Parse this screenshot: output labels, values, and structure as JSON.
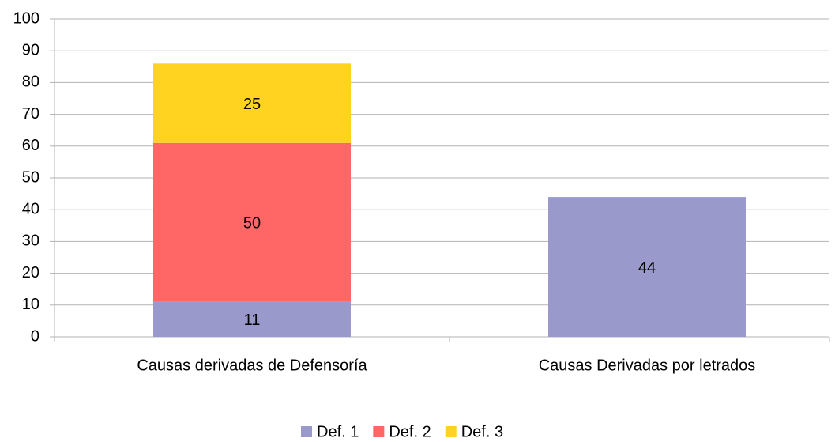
{
  "chart_data": {
    "type": "stacked_bar",
    "categories": [
      "Causas derivadas de Defensoría",
      "Causas Derivadas por letrados"
    ],
    "series": [
      {
        "name": "Def. 1",
        "color": "#9999cc",
        "values": [
          11,
          44
        ]
      },
      {
        "name": "Def. 2",
        "color": "#ff6666",
        "values": [
          50,
          null
        ]
      },
      {
        "name": "Def. 3",
        "color": "#ffd320",
        "values": [
          25,
          null
        ]
      }
    ],
    "ylim": [
      0,
      100
    ],
    "yticks": [
      0,
      10,
      20,
      30,
      40,
      50,
      60,
      70,
      80,
      90,
      100
    ],
    "grid": true,
    "legend": "bottom"
  }
}
